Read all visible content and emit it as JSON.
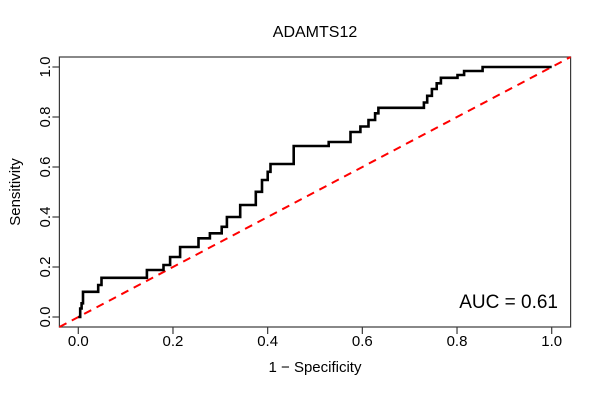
{
  "chart_data": {
    "type": "line",
    "subtype": "roc-step-curve",
    "title": "ADAMTS12",
    "xlabel": "1 − Specificity",
    "ylabel": "Sensitivity",
    "xlim": [
      0,
      1
    ],
    "ylim": [
      0,
      1
    ],
    "grid": false,
    "legend": "none",
    "x_tick_values": [
      0,
      0.2,
      0.4,
      0.6,
      0.8,
      1.0
    ],
    "x_tick_labels": [
      "0.0",
      "0.2",
      "0.4",
      "0.6",
      "0.8",
      "1.0"
    ],
    "y_tick_values": [
      0,
      0.2,
      0.4,
      0.6,
      0.8,
      1.0
    ],
    "y_tick_labels": [
      "0.0",
      "0.2",
      "0.4",
      "0.6",
      "0.8",
      "1.0"
    ],
    "annotation": {
      "label": "AUC = 0.61",
      "auc": 0.61,
      "position": "bottom-right"
    },
    "series": [
      {
        "name": "ROC curve",
        "color": "#000000",
        "style": "solid-step",
        "points": [
          [
            0,
            0
          ],
          [
            0.004,
            0
          ],
          [
            0.004,
            0.034
          ],
          [
            0.007,
            0.034
          ],
          [
            0.007,
            0.055
          ],
          [
            0.01,
            0.055
          ],
          [
            0.01,
            0.101
          ],
          [
            0.042,
            0.101
          ],
          [
            0.042,
            0.128
          ],
          [
            0.049,
            0.128
          ],
          [
            0.049,
            0.157
          ],
          [
            0.145,
            0.157
          ],
          [
            0.145,
            0.188
          ],
          [
            0.18,
            0.188
          ],
          [
            0.18,
            0.208
          ],
          [
            0.194,
            0.208
          ],
          [
            0.194,
            0.24
          ],
          [
            0.215,
            0.24
          ],
          [
            0.215,
            0.28
          ],
          [
            0.254,
            0.28
          ],
          [
            0.254,
            0.315
          ],
          [
            0.278,
            0.315
          ],
          [
            0.278,
            0.335
          ],
          [
            0.303,
            0.335
          ],
          [
            0.303,
            0.361
          ],
          [
            0.314,
            0.361
          ],
          [
            0.314,
            0.4
          ],
          [
            0.342,
            0.4
          ],
          [
            0.342,
            0.448
          ],
          [
            0.375,
            0.448
          ],
          [
            0.375,
            0.501
          ],
          [
            0.388,
            0.501
          ],
          [
            0.388,
            0.548
          ],
          [
            0.4,
            0.548
          ],
          [
            0.4,
            0.581
          ],
          [
            0.406,
            0.581
          ],
          [
            0.406,
            0.612
          ],
          [
            0.455,
            0.612
          ],
          [
            0.455,
            0.684
          ],
          [
            0.529,
            0.684
          ],
          [
            0.529,
            0.7
          ],
          [
            0.575,
            0.7
          ],
          [
            0.575,
            0.74
          ],
          [
            0.596,
            0.74
          ],
          [
            0.596,
            0.762
          ],
          [
            0.613,
            0.762
          ],
          [
            0.613,
            0.788
          ],
          [
            0.627,
            0.788
          ],
          [
            0.627,
            0.815
          ],
          [
            0.634,
            0.815
          ],
          [
            0.634,
            0.837
          ],
          [
            0.73,
            0.837
          ],
          [
            0.73,
            0.858
          ],
          [
            0.737,
            0.858
          ],
          [
            0.737,
            0.885
          ],
          [
            0.747,
            0.885
          ],
          [
            0.747,
            0.912
          ],
          [
            0.757,
            0.912
          ],
          [
            0.757,
            0.935
          ],
          [
            0.766,
            0.935
          ],
          [
            0.766,
            0.957
          ],
          [
            0.801,
            0.957
          ],
          [
            0.801,
            0.968
          ],
          [
            0.815,
            0.968
          ],
          [
            0.815,
            0.984
          ],
          [
            0.854,
            0.984
          ],
          [
            0.854,
            1
          ],
          [
            1,
            1
          ]
        ]
      },
      {
        "name": "Chance diagonal",
        "color": "#FF0000",
        "style": "dashed",
        "points": [
          [
            0,
            0
          ],
          [
            1,
            1
          ]
        ]
      }
    ]
  },
  "colors": {
    "curve": "#000000",
    "diagonal": "#FF0000",
    "frame": "#3a3a3a",
    "background": "#FFFFFF"
  }
}
